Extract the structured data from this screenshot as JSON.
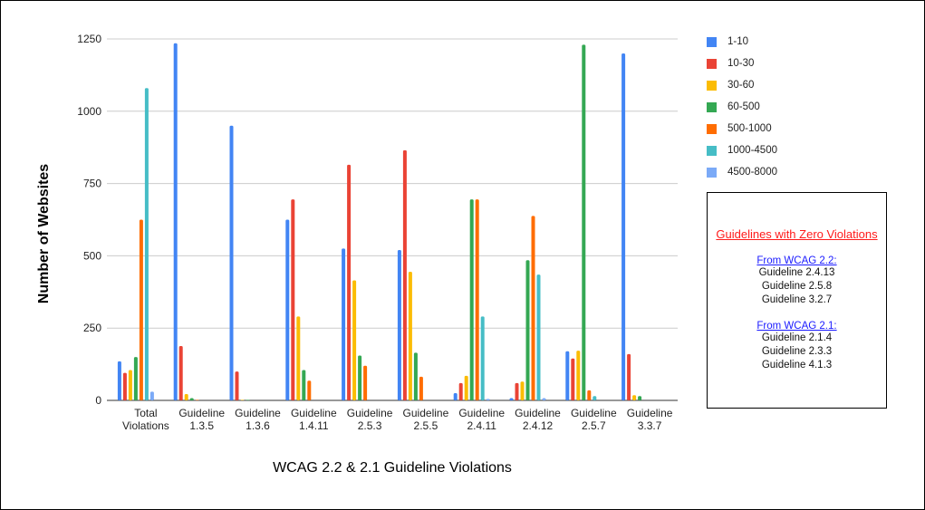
{
  "chart_data": {
    "type": "bar",
    "title": "",
    "xlabel": "WCAG 2.2 & 2.1 Guideline Violations",
    "ylabel": "Number of Websites",
    "ylim": [
      0,
      1250
    ],
    "yticks": [
      0,
      250,
      500,
      750,
      1000,
      1250
    ],
    "grid": true,
    "legend_position": "right",
    "categories": [
      [
        "Total",
        "Violations"
      ],
      [
        "Guideline",
        "1.3.5"
      ],
      [
        "Guideline",
        "1.3.6"
      ],
      [
        "Guideline",
        "1.4.11"
      ],
      [
        "Guideline",
        "2.5.3"
      ],
      [
        "Guideline",
        "2.5.5"
      ],
      [
        "Guideline",
        "2.4.11"
      ],
      [
        "Guideline",
        "2.4.12"
      ],
      [
        "Guideline",
        "2.5.7"
      ],
      [
        "Guideline",
        "3.3.7"
      ]
    ],
    "series": [
      {
        "name": "1-10",
        "color": "#4285f4",
        "values": [
          135,
          1235,
          950,
          625,
          525,
          520,
          25,
          8,
          170,
          1200
        ]
      },
      {
        "name": "10-30",
        "color": "#ea4335",
        "values": [
          95,
          188,
          100,
          695,
          815,
          865,
          60,
          60,
          145,
          160
        ]
      },
      {
        "name": "30-60",
        "color": "#fbbc04",
        "values": [
          105,
          22,
          2,
          290,
          415,
          445,
          85,
          65,
          172,
          18
        ]
      },
      {
        "name": "60-500",
        "color": "#34a853",
        "values": [
          150,
          8,
          2,
          105,
          155,
          165,
          695,
          485,
          1230,
          15
        ]
      },
      {
        "name": "500-1000",
        "color": "#ff6d01",
        "values": [
          625,
          2,
          0,
          68,
          120,
          82,
          695,
          638,
          35,
          0
        ]
      },
      {
        "name": "1000-4500",
        "color": "#46bdc6",
        "values": [
          1080,
          0,
          0,
          0,
          0,
          0,
          290,
          435,
          15,
          0
        ]
      },
      {
        "name": "4500-8000",
        "color": "#7baaf7",
        "values": [
          30,
          0,
          0,
          0,
          0,
          0,
          5,
          8,
          0,
          0
        ]
      }
    ]
  },
  "zero_violations": {
    "title": "Guidelines with Zero Violations",
    "groups": [
      {
        "heading": "From WCAG 2.2:",
        "items": [
          "Guideline 2.4.13",
          "Guideline 2.5.8",
          "Guideline 3.2.7"
        ]
      },
      {
        "heading": "From WCAG 2.1:",
        "items": [
          "Guideline 2.1.4",
          "Guideline 2.3.3",
          "Guideline 4.1.3"
        ]
      }
    ]
  }
}
